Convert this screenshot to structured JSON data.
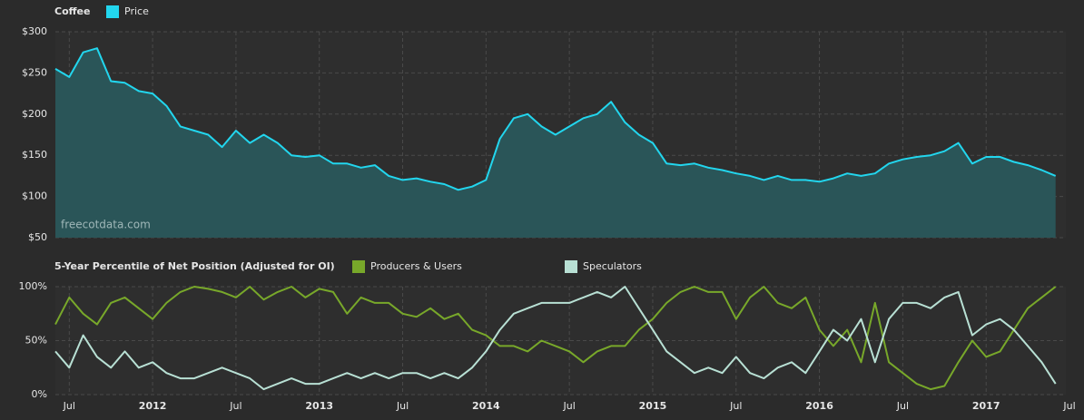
{
  "chart_data": [
    {
      "type": "area",
      "title": "Coffee",
      "annotation": "freecotdata.com",
      "x": [
        "2011-06",
        "2011-07",
        "2011-08",
        "2011-09",
        "2011-10",
        "2011-11",
        "2011-12",
        "2012-01",
        "2012-02",
        "2012-03",
        "2012-04",
        "2012-05",
        "2012-06",
        "2012-07",
        "2012-08",
        "2012-09",
        "2012-10",
        "2012-11",
        "2012-12",
        "2013-01",
        "2013-02",
        "2013-03",
        "2013-04",
        "2013-05",
        "2013-06",
        "2013-07",
        "2013-08",
        "2013-09",
        "2013-10",
        "2013-11",
        "2013-12",
        "2014-01",
        "2014-02",
        "2014-03",
        "2014-04",
        "2014-05",
        "2014-06",
        "2014-07",
        "2014-08",
        "2014-09",
        "2014-10",
        "2014-11",
        "2014-12",
        "2015-01",
        "2015-02",
        "2015-03",
        "2015-04",
        "2015-05",
        "2015-06",
        "2015-07",
        "2015-08",
        "2015-09",
        "2015-10",
        "2015-11",
        "2015-12",
        "2016-01",
        "2016-02",
        "2016-03",
        "2016-04",
        "2016-05",
        "2016-06",
        "2016-07",
        "2016-08",
        "2016-09",
        "2016-10",
        "2016-11",
        "2016-12",
        "2017-01",
        "2017-02",
        "2017-03",
        "2017-04",
        "2017-05",
        "2017-06"
      ],
      "series": [
        {
          "name": "Price",
          "color": "#22d6ee",
          "fill": "#2a5558",
          "values": [
            255,
            245,
            275,
            280,
            240,
            238,
            228,
            225,
            210,
            185,
            180,
            175,
            160,
            180,
            165,
            175,
            165,
            150,
            148,
            150,
            140,
            140,
            135,
            138,
            125,
            120,
            122,
            118,
            115,
            108,
            112,
            120,
            170,
            195,
            200,
            185,
            175,
            185,
            195,
            200,
            215,
            190,
            175,
            165,
            140,
            138,
            140,
            135,
            132,
            128,
            125,
            120,
            125,
            120,
            120,
            118,
            122,
            128,
            125,
            128,
            140,
            145,
            148,
            150,
            155,
            165,
            140,
            148,
            148,
            142,
            138,
            132,
            125
          ]
        }
      ],
      "xlim": [
        "2011-06",
        "2017-07"
      ],
      "ylim": [
        50,
        300
      ],
      "yticks": [
        {
          "value": 50,
          "label": "$50"
        },
        {
          "value": 100,
          "label": "$100"
        },
        {
          "value": 150,
          "label": "$150"
        },
        {
          "value": 200,
          "label": "$200"
        },
        {
          "value": 250,
          "label": "$250"
        },
        {
          "value": 300,
          "label": "$300"
        }
      ],
      "grid": true
    },
    {
      "type": "line",
      "title": "5-Year Percentile of Net Position (Adjusted for OI)",
      "x": [
        "2011-06",
        "2011-07",
        "2011-08",
        "2011-09",
        "2011-10",
        "2011-11",
        "2011-12",
        "2012-01",
        "2012-02",
        "2012-03",
        "2012-04",
        "2012-05",
        "2012-06",
        "2012-07",
        "2012-08",
        "2012-09",
        "2012-10",
        "2012-11",
        "2012-12",
        "2013-01",
        "2013-02",
        "2013-03",
        "2013-04",
        "2013-05",
        "2013-06",
        "2013-07",
        "2013-08",
        "2013-09",
        "2013-10",
        "2013-11",
        "2013-12",
        "2014-01",
        "2014-02",
        "2014-03",
        "2014-04",
        "2014-05",
        "2014-06",
        "2014-07",
        "2014-08",
        "2014-09",
        "2014-10",
        "2014-11",
        "2014-12",
        "2015-01",
        "2015-02",
        "2015-03",
        "2015-04",
        "2015-05",
        "2015-06",
        "2015-07",
        "2015-08",
        "2015-09",
        "2015-10",
        "2015-11",
        "2015-12",
        "2016-01",
        "2016-02",
        "2016-03",
        "2016-04",
        "2016-05",
        "2016-06",
        "2016-07",
        "2016-08",
        "2016-09",
        "2016-10",
        "2016-11",
        "2016-12",
        "2017-01",
        "2017-02",
        "2017-03",
        "2017-04",
        "2017-05",
        "2017-06"
      ],
      "series": [
        {
          "name": "Producers & Users",
          "color": "#78a82a",
          "values": [
            65,
            90,
            75,
            65,
            85,
            90,
            80,
            70,
            85,
            95,
            100,
            98,
            95,
            90,
            100,
            88,
            95,
            100,
            90,
            98,
            95,
            75,
            90,
            85,
            85,
            75,
            72,
            80,
            70,
            75,
            60,
            55,
            45,
            45,
            40,
            50,
            45,
            40,
            30,
            40,
            45,
            45,
            60,
            70,
            85,
            95,
            100,
            95,
            95,
            70,
            90,
            100,
            85,
            80,
            90,
            60,
            45,
            60,
            30,
            85,
            30,
            20,
            10,
            5,
            8,
            30,
            50,
            35,
            40,
            60,
            80,
            90,
            100
          ]
        },
        {
          "name": "Speculators",
          "color": "#b8e0d4",
          "values": [
            40,
            25,
            55,
            35,
            25,
            40,
            25,
            30,
            20,
            15,
            15,
            20,
            25,
            20,
            15,
            5,
            10,
            15,
            10,
            10,
            15,
            20,
            15,
            20,
            15,
            20,
            20,
            15,
            20,
            15,
            25,
            40,
            60,
            75,
            80,
            85,
            85,
            85,
            90,
            95,
            90,
            100,
            80,
            60,
            40,
            30,
            20,
            25,
            20,
            35,
            20,
            15,
            25,
            30,
            20,
            40,
            60,
            50,
            70,
            30,
            70,
            85,
            85,
            80,
            90,
            95,
            55,
            65,
            70,
            60,
            45,
            30,
            10
          ]
        }
      ],
      "xlim": [
        "2011-06",
        "2017-07"
      ],
      "xticks": [
        {
          "value": "2011-07",
          "label": "Jul"
        },
        {
          "value": "2012-01",
          "label": "2012"
        },
        {
          "value": "2012-07",
          "label": "Jul"
        },
        {
          "value": "2013-01",
          "label": "2013"
        },
        {
          "value": "2013-07",
          "label": "Jul"
        },
        {
          "value": "2014-01",
          "label": "2014"
        },
        {
          "value": "2014-07",
          "label": "Jul"
        },
        {
          "value": "2015-01",
          "label": "2015"
        },
        {
          "value": "2015-07",
          "label": "Jul"
        },
        {
          "value": "2016-01",
          "label": "2016"
        },
        {
          "value": "2016-07",
          "label": "Jul"
        },
        {
          "value": "2017-01",
          "label": "2017"
        },
        {
          "value": "2017-07",
          "label": "Jul"
        }
      ],
      "ylim": [
        0,
        100
      ],
      "yticks": [
        {
          "value": 0,
          "label": "0%"
        },
        {
          "value": 50,
          "label": "50%"
        },
        {
          "value": 100,
          "label": "100%"
        }
      ],
      "grid": true
    }
  ]
}
